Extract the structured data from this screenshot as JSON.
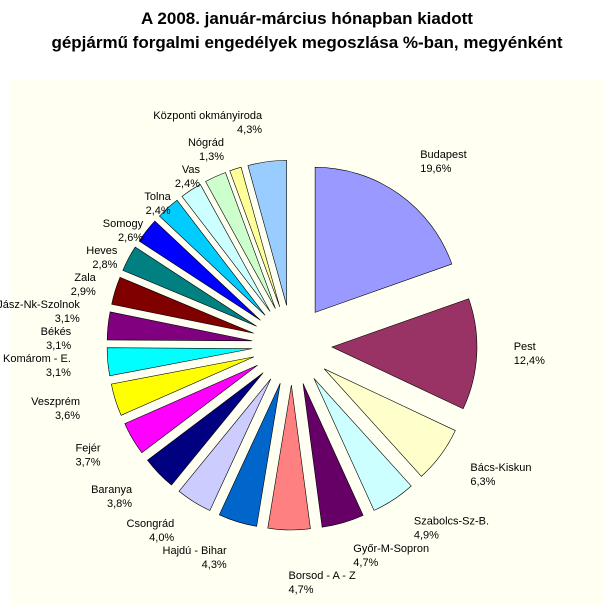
{
  "chart_data": {
    "type": "pie",
    "title": "A  2008. január-március hónapban kiadott",
    "subtitle": "gépjármű forgalmi engedélyek megoszlása %-ban, megyénként",
    "categories": [
      "Budapest",
      "Pest",
      "Bács-Kiskun",
      "Szabolcs-Sz-B.",
      "Győr-M-Sopron",
      "Borsod - A - Z",
      "Hajdú - Bihar",
      "Csongrád",
      "Baranya",
      "Fejér",
      "Veszprém",
      "Komárom - E.",
      "Békés",
      "Jász-Nk-Szolnok",
      "Zala",
      "Heves",
      "Somogy",
      "Tolna",
      "Vas",
      "Nógrád",
      "Központi okmányiroda"
    ],
    "values": [
      19.6,
      12.4,
      6.3,
      4.9,
      4.7,
      4.7,
      4.3,
      4.0,
      3.8,
      3.7,
      3.6,
      3.1,
      3.1,
      3.1,
      2.9,
      2.8,
      2.6,
      2.4,
      2.4,
      1.3,
      4.3
    ],
    "value_labels": [
      "19,6%",
      "12,4%",
      "6,3%",
      "4,9%",
      "4,7%",
      "4,7%",
      "4,3%",
      "4,0%",
      "3,8%",
      "3,7%",
      "3,6%",
      "3,1%",
      "3,1%",
      "3,1%",
      "2,9%",
      "2,8%",
      "2,6%",
      "2,4%",
      "2,4%",
      "1,3%",
      "4,3%"
    ],
    "colors": [
      "#9999ff",
      "#993366",
      "#ffffcc",
      "#ccffff",
      "#660066",
      "#ff8080",
      "#0066cc",
      "#ccccff",
      "#000080",
      "#ff00ff",
      "#ffff00",
      "#00ffff",
      "#800080",
      "#800000",
      "#008080",
      "#0000ff",
      "#00ccff",
      "#ccffff",
      "#ccffcc",
      "#ffff99",
      "#99ccff"
    ]
  }
}
